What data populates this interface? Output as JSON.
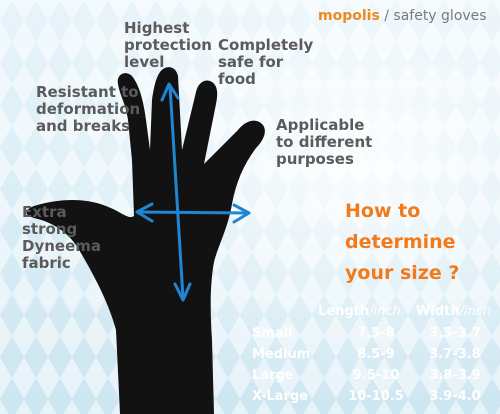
{
  "brand": {
    "name": "mopolis",
    "separator": " / ",
    "category": "safety gloves"
  },
  "features": {
    "protection": "Highest\nprotection\nlevel",
    "food": "Completely\nsafe for\nfood",
    "deformation": "Resistant to\ndeformation\nand breaks",
    "purposes": "Applicable\nto different\npurposes",
    "fabric": "Extra\nstrong\nDyneema\nfabric"
  },
  "sizing": {
    "heading": "How to\ndetermine\nyour size ?",
    "length_label": "Length",
    "width_label": "Width",
    "unit": "/inch",
    "rows": [
      {
        "size": "Small",
        "length": "7.5-8",
        "width": "3.5-3.7"
      },
      {
        "size": "Medium",
        "length": "8.5-9",
        "width": "3.7-3.8"
      },
      {
        "size": "Large",
        "length": "9.5-10",
        "width": "3.8-3.9"
      },
      {
        "size": "X-Large",
        "length": "10-10.5",
        "width": "3.9-4.0"
      }
    ]
  },
  "colors": {
    "heading": "#f27a1a",
    "brand": "#f08a1e",
    "glove": "#121212",
    "arrow": "#1f86d4",
    "feature_text": "#5b5b5b",
    "table_text": "#ffffff"
  },
  "icons": {
    "length_arrow": "double-arrow-vertical",
    "width_arrow": "double-arrow-horizontal"
  }
}
